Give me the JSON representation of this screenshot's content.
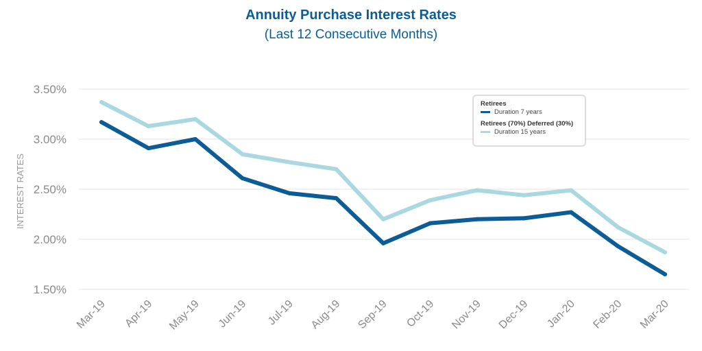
{
  "chart_data": {
    "type": "line",
    "title": "Annuity Purchase Interest Rates",
    "subtitle": "(Last 12 Consecutive Months)",
    "ylabel": "INTEREST RATES",
    "xlabel": "",
    "ylim": [
      1.5,
      3.5
    ],
    "yticks": [
      "1.50%",
      "2.00%",
      "2.50%",
      "3.00%",
      "3.50%"
    ],
    "ytick_values": [
      1.5,
      2.0,
      2.5,
      3.0,
      3.5
    ],
    "grid": true,
    "legend_position": "top-right",
    "categories": [
      "Mar-19",
      "Apr-19",
      "May-19",
      "Jun-19",
      "Jul-19",
      "Aug-19",
      "Sep-19",
      "Oct-19",
      "Nov-19",
      "Dec-19",
      "Jan-20",
      "Feb-20",
      "Mar-20"
    ],
    "series": [
      {
        "group": "Retirees",
        "name": "Duration 7 years",
        "color": "#0b5c97",
        "values": [
          3.17,
          2.91,
          3.0,
          2.61,
          2.46,
          2.41,
          1.96,
          2.16,
          2.2,
          2.21,
          2.27,
          1.93,
          1.65
        ]
      },
      {
        "group": "Retirees (70%) Deferred (30%)",
        "name": "Duration 15 years",
        "color": "#a9d8e1",
        "values": [
          3.37,
          3.13,
          3.2,
          2.85,
          2.77,
          2.7,
          2.2,
          2.39,
          2.49,
          2.44,
          2.49,
          2.12,
          1.87
        ]
      }
    ]
  }
}
